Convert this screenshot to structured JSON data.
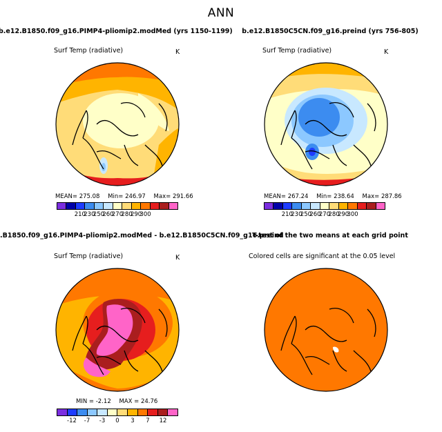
{
  "page_title": "ANN",
  "palettes": {
    "abs": [
      "#7b2ee0",
      "#0000a8",
      "#1e3cff",
      "#3c8cf0",
      "#8cc8ff",
      "#c8e8ff",
      "#ffffc8",
      "#ffdc78",
      "#ffb400",
      "#ff7800",
      "#e61e1e",
      "#aa1e1e",
      "#ff64c8"
    ],
    "diff": [
      "#7b2ee0",
      "#1e3cff",
      "#3c8cf0",
      "#8cc8ff",
      "#c8e8ff",
      "#ffffc8",
      "#ffdc78",
      "#ffb400",
      "#ff7800",
      "#e61e1e",
      "#aa1e1e",
      "#ff64c8"
    ]
  },
  "chart_data": [
    {
      "type": "map",
      "id": "panel-1",
      "title": "b.e12.B1850.f09_g16.PIMP4-pliomip2.modMed (yrs 1150-1199)",
      "variable": "Surf Temp (radiative)",
      "units": "K",
      "stats": {
        "mean_label": "MEAN=",
        "mean": "275.08",
        "min_label": "Min=",
        "min": "246.97",
        "max_label": "Max=",
        "max": "291.66"
      },
      "colorbar_ticks": [
        "210",
        "230",
        "250",
        "260",
        "270",
        "280",
        "290",
        "300"
      ]
    },
    {
      "type": "map",
      "id": "panel-2",
      "title": "b.e12.B1850C5CN.f09_g16.preind (yrs 756-805)",
      "variable": "Surf Temp (radiative)",
      "units": "K",
      "stats": {
        "mean_label": "MEAN=",
        "mean": "267.24",
        "min_label": "Min=",
        "min": "238.64",
        "max_label": "Max=",
        "max": "287.86"
      },
      "colorbar_ticks": [
        "210",
        "230",
        "250",
        "260",
        "270",
        "280",
        "290",
        "300"
      ]
    },
    {
      "type": "map",
      "id": "panel-3",
      "title": ".B1850.f09_g16.PIMP4-pliomip2.modMed - b.e12.B1850C5CN.f09_g16.preind",
      "variable": "Surf Temp (radiative)",
      "units": "K",
      "stats": {
        "min_label": "MIN =",
        "min": "-2.12",
        "max_label": "MAX =",
        "max": "24.76"
      },
      "colorbar_ticks": [
        "-12",
        "-7",
        "-3",
        "0",
        "3",
        "7",
        "12"
      ]
    },
    {
      "type": "map",
      "id": "panel-4",
      "title": "T-test of the two means at each grid point",
      "variable": "Colored cells are significant at the 0.05 level"
    }
  ]
}
